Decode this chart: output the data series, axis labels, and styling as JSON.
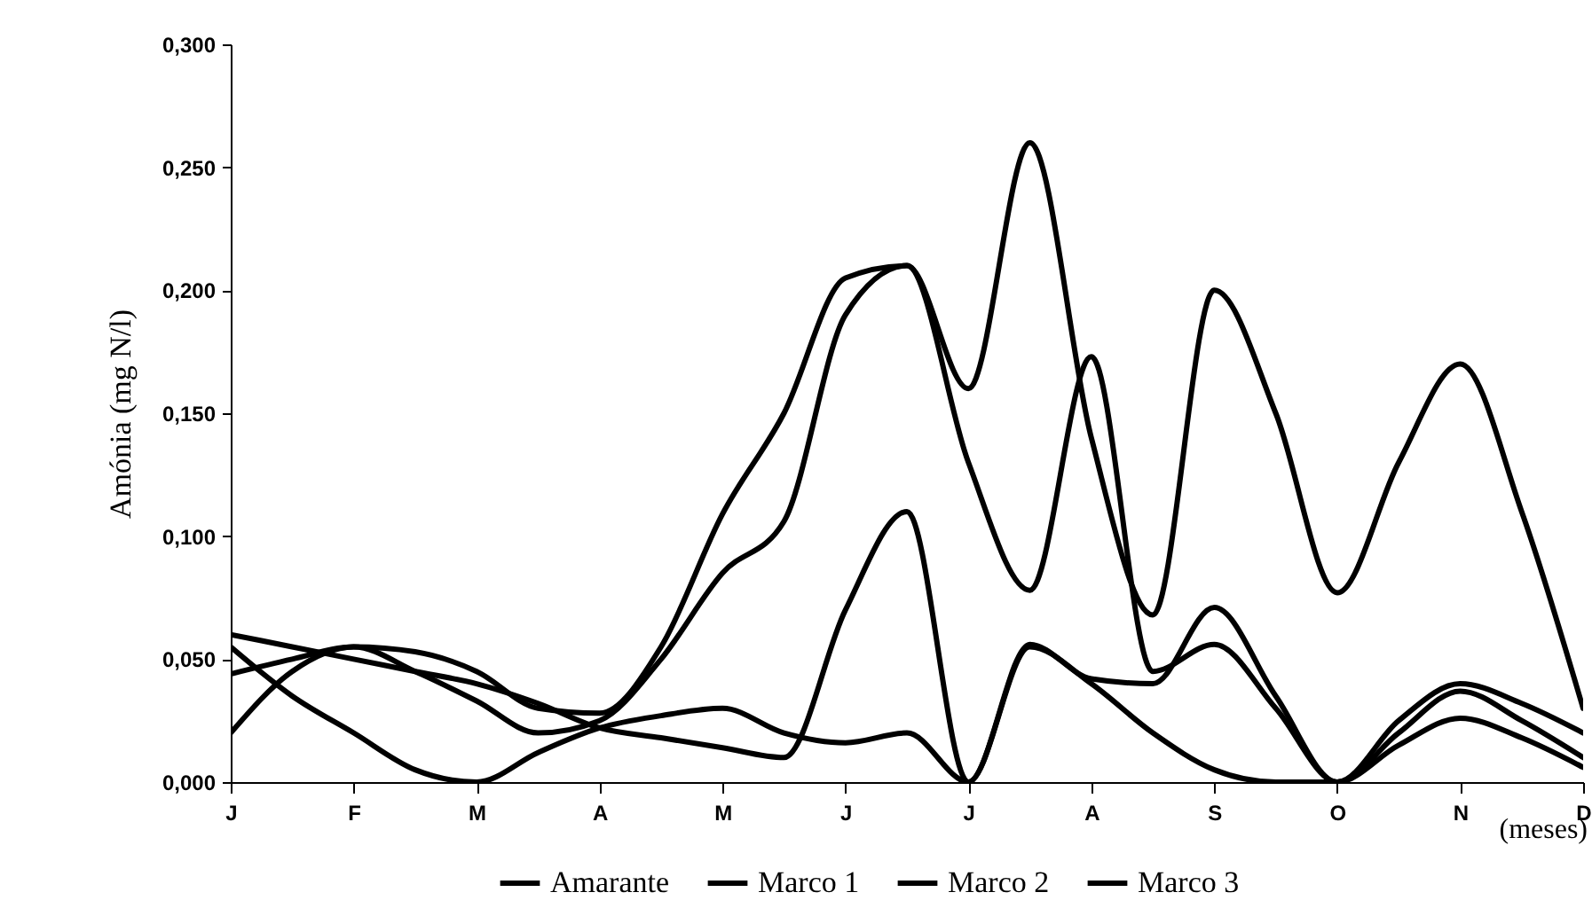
{
  "chart_data": {
    "type": "line",
    "xlabel": "(meses)",
    "ylabel": "Amónia (mg N/l)",
    "legend": "bottom",
    "categories": [
      "J",
      null,
      "F",
      null,
      "M",
      null,
      "A",
      null,
      "M",
      null,
      "J",
      null,
      "J",
      null,
      "A",
      null,
      "S",
      null,
      "O",
      null,
      "N",
      null,
      "D"
    ],
    "ylim": [
      0,
      0.3
    ],
    "yticks": [
      {
        "value": 0,
        "label": "0,000"
      },
      {
        "value": 0.05,
        "label": "0,050"
      },
      {
        "value": 0.1,
        "label": "0,100"
      },
      {
        "value": 0.15,
        "label": "0,150"
      },
      {
        "value": 0.2,
        "label": "0,200"
      },
      {
        "value": 0.25,
        "label": "0,250"
      },
      {
        "value": 0.3,
        "label": "0,300"
      }
    ],
    "series": [
      {
        "name": "Amarante",
        "color": "#000000",
        "values": [
          0.044,
          0.05,
          0.055,
          0.045,
          0.033,
          0.02,
          0.025,
          0.05,
          0.085,
          0.106,
          0.19,
          0.21,
          0.16,
          0.26,
          0.14,
          0.068,
          0.2,
          0.15,
          0.077,
          0.13,
          0.17,
          0.11,
          0.03
        ]
      },
      {
        "name": "Marco 1",
        "color": "#000000",
        "values": [
          0.02,
          0.045,
          0.055,
          0.053,
          0.045,
          0.03,
          0.028,
          0.055,
          0.109,
          0.15,
          0.205,
          0.21,
          0.13,
          0.078,
          0.173,
          0.045,
          0.056,
          0.03,
          0,
          0.025,
          0.04,
          0.032,
          0.02
        ]
      },
      {
        "name": "Marco 2",
        "color": "#000000",
        "values": [
          0.06,
          0.055,
          0.05,
          0.045,
          0.04,
          0.032,
          0.022,
          0.018,
          0.014,
          0.01,
          0.07,
          0.11,
          0,
          0.056,
          0.042,
          0.04,
          0.071,
          0.035,
          0,
          0.02,
          0.037,
          0.025,
          0.01
        ]
      },
      {
        "name": "Marco 3",
        "color": "#000000",
        "values": [
          0.055,
          0.035,
          0.02,
          0.005,
          0,
          0.012,
          0.022,
          0.027,
          0.03,
          0.02,
          0.016,
          0.02,
          0,
          0.055,
          0.04,
          0.02,
          0.005,
          0,
          0,
          0.015,
          0.026,
          0.018,
          0.006
        ]
      }
    ]
  }
}
